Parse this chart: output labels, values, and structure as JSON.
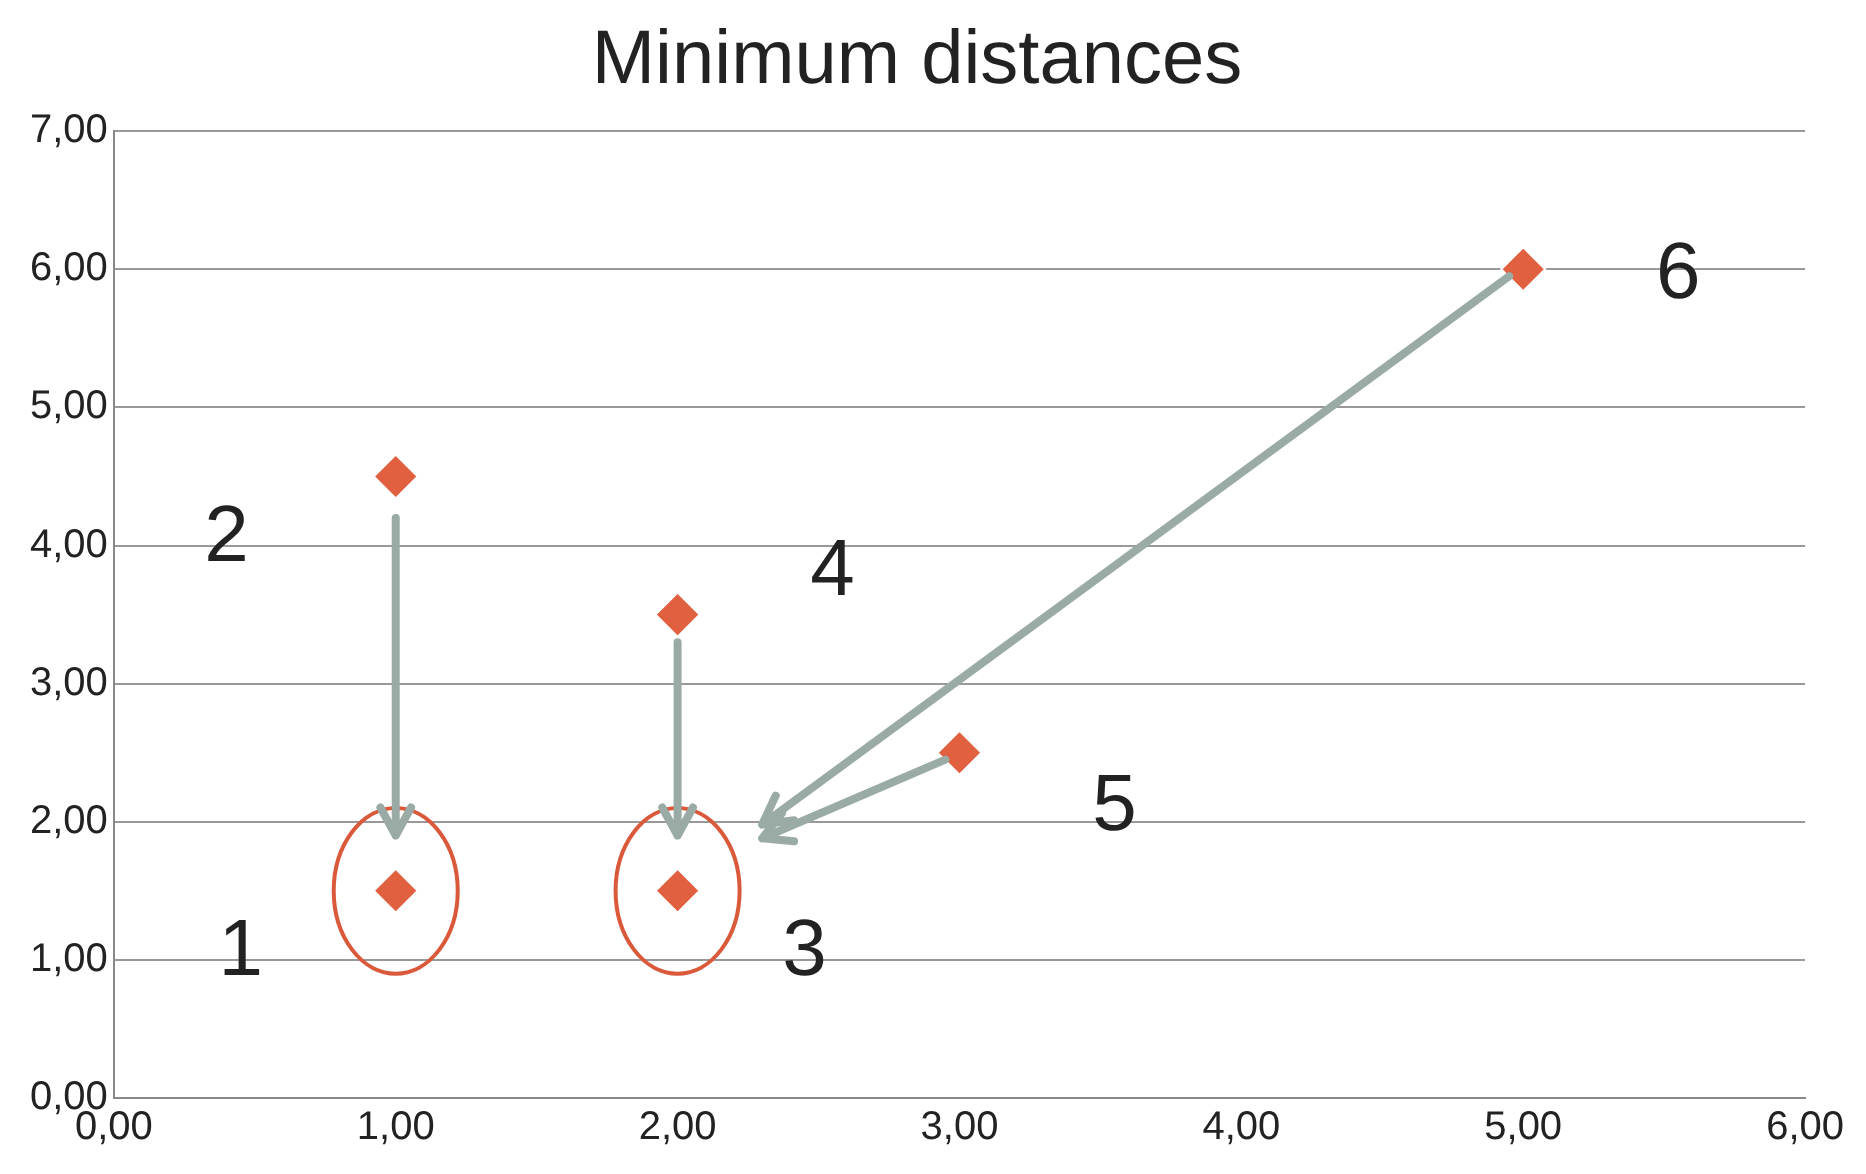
{
  "chart_data": {
    "type": "scatter",
    "title": "Minimum distances",
    "x": [
      1,
      1,
      2,
      2,
      3,
      5
    ],
    "values": [
      1.5,
      4.5,
      1.5,
      3.5,
      2.5,
      6
    ],
    "color": "#e0603f",
    "marker": "diamond",
    "grid": "y",
    "legend": false,
    "xlim": [
      0,
      6
    ],
    "xticks": [
      {
        "value": 0,
        "label": "0,00"
      },
      {
        "value": 1,
        "label": "1,00"
      },
      {
        "value": 2,
        "label": "2,00"
      },
      {
        "value": 3,
        "label": "3,00"
      },
      {
        "value": 4,
        "label": "4,00"
      },
      {
        "value": 5,
        "label": "5,00"
      },
      {
        "value": 6,
        "label": "6,00"
      }
    ],
    "ylim": [
      0,
      7
    ],
    "yticks": [
      {
        "value": 0,
        "label": "0,00"
      },
      {
        "value": 1,
        "label": "1,00"
      },
      {
        "value": 2,
        "label": "2,00"
      },
      {
        "value": 3,
        "label": "3,00"
      },
      {
        "value": 4,
        "label": "4,00"
      },
      {
        "value": 5,
        "label": "5,00"
      },
      {
        "value": 6,
        "label": "6,00"
      },
      {
        "value": 7,
        "label": "7,00"
      }
    ],
    "annotations": [
      {
        "text": "1",
        "x": 1,
        "y": 1.5
      },
      {
        "text": "2",
        "x": 1,
        "y": 4.5
      },
      {
        "text": "3",
        "x": 2,
        "y": 1.5
      },
      {
        "text": "4",
        "x": 2,
        "y": 3.5
      },
      {
        "text": "5",
        "x": 3,
        "y": 2.5
      },
      {
        "text": "6",
        "x": 5,
        "y": 6
      }
    ]
  }
}
